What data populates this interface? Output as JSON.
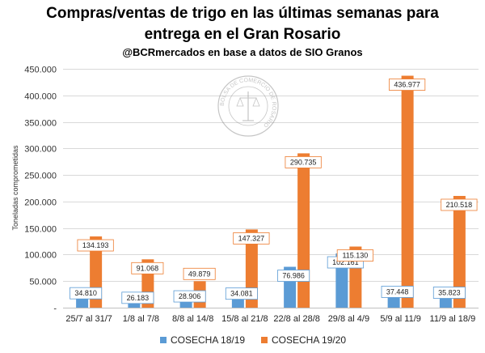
{
  "title_line1": "Compras/ventas de trigo en las últimas semanas para",
  "title_line2": "entrega en el Gran Rosario",
  "subtitle": "@BCRmercados en base a datos de SIO Granos",
  "colors": {
    "series1": "#5B9BD5",
    "series2": "#ED7D31",
    "grid": "#D9D9D9",
    "axis": "#BFBFBF"
  },
  "seal_text": "BOLSA DE COMERCIO DE ROSARIO",
  "chart_data": {
    "type": "bar",
    "ylabel": "Toneladas comprometidas",
    "ylim": [
      0,
      450000
    ],
    "yticks": [
      0,
      50000,
      100000,
      150000,
      200000,
      250000,
      300000,
      350000,
      400000,
      450000
    ],
    "ytick_labels": [
      "-",
      "50.000",
      "100.000",
      "150.000",
      "200.000",
      "250.000",
      "300.000",
      "350.000",
      "400.000",
      "450.000"
    ],
    "categories": [
      "25/7 al 31/7",
      "1/8 al 7/8",
      "8/8 al 14/8",
      "15/8 al 21/8",
      "22/8 al 28/8",
      "29/8 al 4/9",
      "5/9 al 11/9",
      "11/9 al 18/9"
    ],
    "series": [
      {
        "name": "COSECHA 18/19",
        "values": [
          34810,
          26183,
          28906,
          34081,
          76986,
          102161,
          37448,
          35823
        ],
        "labels": [
          "34.810",
          "26.183",
          "28.906",
          "34.081",
          "76.986",
          "102.161",
          "37.448",
          "35.823"
        ]
      },
      {
        "name": "COSECHA 19/20",
        "values": [
          134193,
          91068,
          49879,
          147327,
          290735,
          115130,
          436977,
          210518
        ],
        "labels": [
          "134.193",
          "91.068",
          "49.879",
          "147.327",
          "290.735",
          "115.130",
          "436.977",
          "210.518"
        ]
      }
    ],
    "grid": true,
    "legend_position": "bottom"
  }
}
